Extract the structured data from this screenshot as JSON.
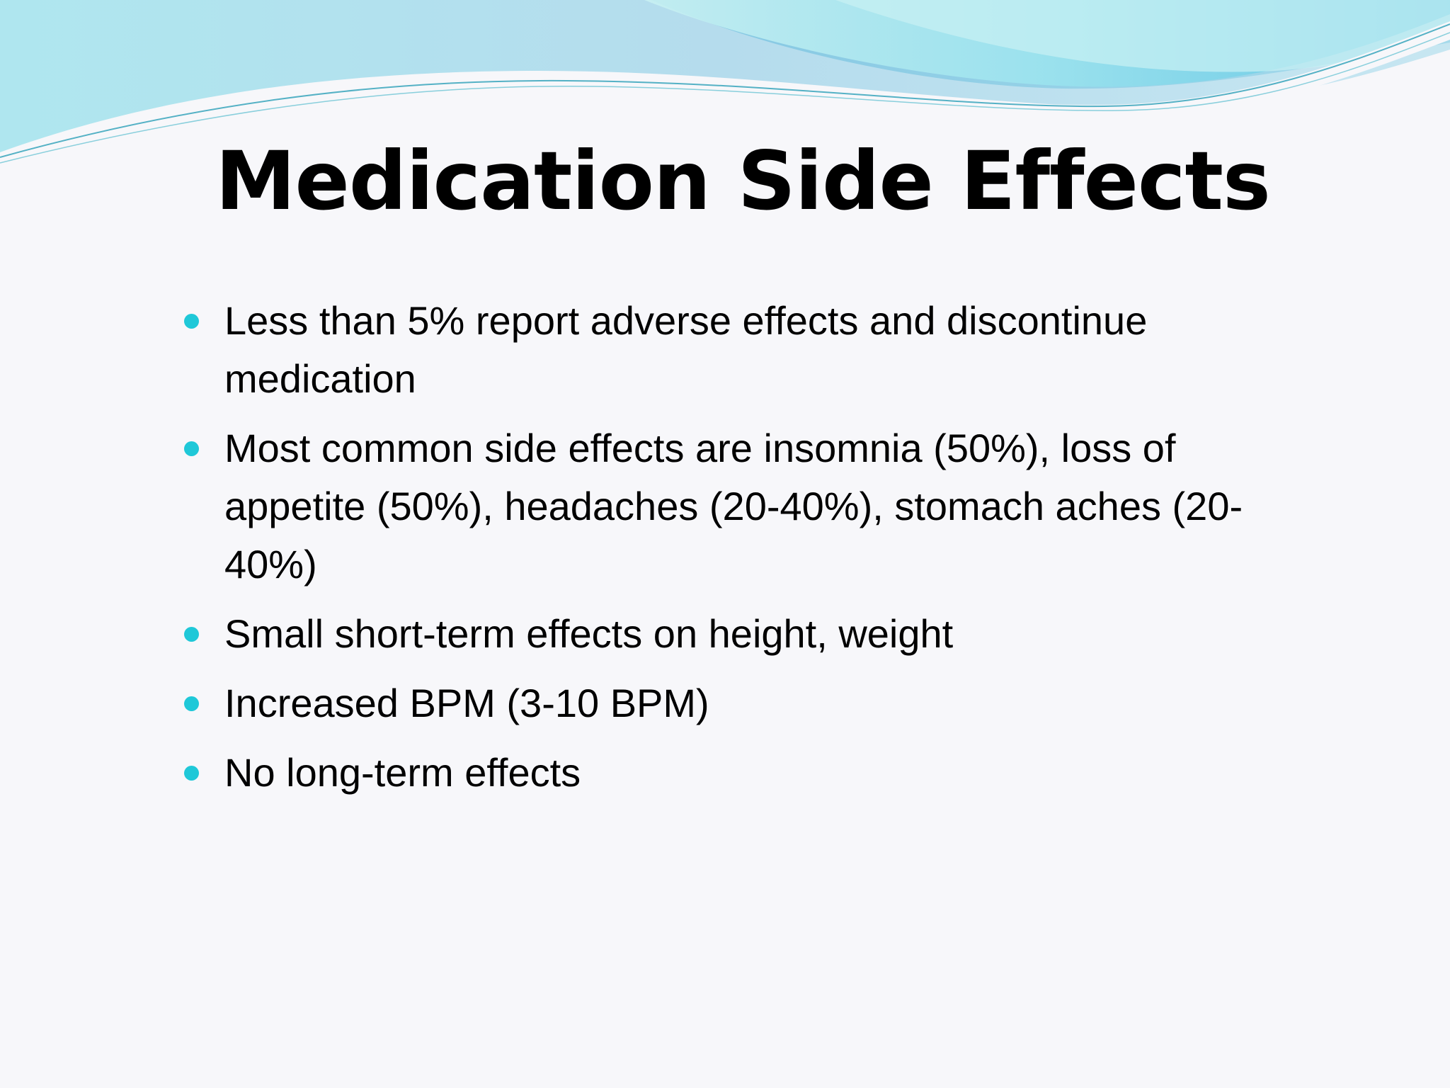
{
  "slide": {
    "title": "Medication Side Effects",
    "bullet_color": "#1fc8d8",
    "bullets": [
      "Less than 5% report adverse effects and discontinue medication",
      "Most common side effects are insomnia (50%), loss of appetite (50%), headaches (20-40%), stomach aches (20-40%)",
      "Small short-term effects on height, weight",
      "Increased BPM (3-10 BPM)",
      "No long-term effects"
    ]
  },
  "theme": {
    "background": "#f7f7fa",
    "wave_light": "#b9ecef",
    "wave_mid": "#7fd6e4",
    "wave_dark": "#58bede",
    "line_color": "#2a9fb8"
  }
}
